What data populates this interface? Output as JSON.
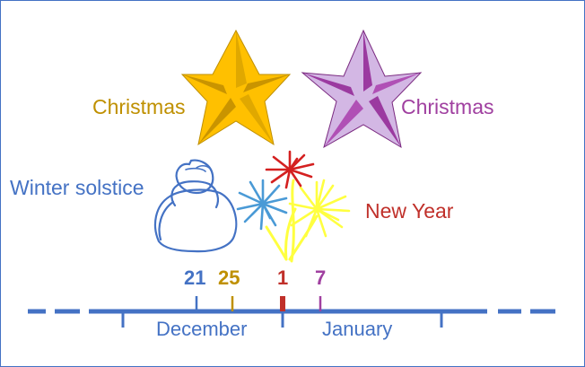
{
  "labels": {
    "christmas_gold": "Christmas",
    "christmas_purple": "Christmas",
    "winter_solstice": "Winter solstice",
    "new_year": "New Year"
  },
  "days": {
    "solstice": "21",
    "christmas_western": "25",
    "new_year": "1",
    "christmas_orthodox": "7"
  },
  "months": {
    "december": "December",
    "january": "January"
  },
  "colors": {
    "blue": "#4472c4",
    "gold": "#bf9000",
    "red": "#c0302a",
    "purple": "#a040a0",
    "star_gold": "#ffc000",
    "star_purple": "#b050b5",
    "firework_red": "#d42020",
    "firework_blue": "#4a9ad6",
    "firework_yellow": "#ffff40"
  },
  "icons": {
    "star_gold": "star-icon",
    "star_purple": "star-icon",
    "snowman": "snowman-icon",
    "fireworks": "fireworks-icon"
  }
}
